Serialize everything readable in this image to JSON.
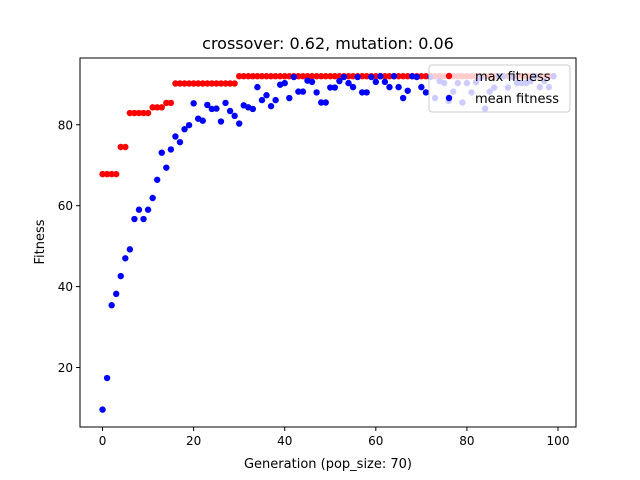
{
  "chart_data": {
    "type": "scatter",
    "title": "crossover: 0.62, mutation: 0.06",
    "xlabel": "Generation (pop_size: 70)",
    "ylabel": "Fitness",
    "xlim": [
      -4.95,
      103.95
    ],
    "ylim": [
      5.3,
      96.5
    ],
    "xticks": [
      0,
      20,
      40,
      60,
      80,
      100
    ],
    "yticks": [
      20,
      40,
      60,
      80
    ],
    "grid": false,
    "legend_position": "top-right",
    "series": [
      {
        "name": "max fitness",
        "color": "#ff0000",
        "x": [
          0,
          1,
          2,
          3,
          4,
          5,
          6,
          7,
          8,
          9,
          10,
          11,
          12,
          13,
          14,
          15,
          16,
          17,
          18,
          19,
          20,
          21,
          22,
          23,
          24,
          25,
          26,
          27,
          28,
          29,
          30,
          31,
          32,
          33,
          34,
          35,
          36,
          37,
          38,
          39,
          40,
          41,
          42,
          43,
          44,
          45,
          46,
          47,
          48,
          49,
          50,
          51,
          52,
          53,
          54,
          55,
          56,
          57,
          58,
          59,
          60,
          61,
          62,
          63,
          64,
          65,
          66,
          67,
          68,
          69,
          70,
          71,
          72,
          73,
          74,
          75,
          76,
          77,
          78,
          79,
          80,
          81,
          82,
          83,
          84,
          85,
          86,
          87,
          88,
          89,
          90,
          91,
          92,
          93,
          94,
          95,
          96,
          97,
          98,
          99
        ],
        "y": [
          67.8,
          67.8,
          67.8,
          67.8,
          74.5,
          74.5,
          82.9,
          82.9,
          82.9,
          82.9,
          82.9,
          84.3,
          84.3,
          84.3,
          85.4,
          85.4,
          90.2,
          90.2,
          90.2,
          90.2,
          90.2,
          90.2,
          90.2,
          90.2,
          90.2,
          90.2,
          90.2,
          90.2,
          90.2,
          90.2,
          92.0,
          92.0,
          92.0,
          92.0,
          92.0,
          92.0,
          92.0,
          92.0,
          92.0,
          92.0,
          92.0,
          92.0,
          92.0,
          92.0,
          92.0,
          92.0,
          92.0,
          92.0,
          92.0,
          92.0,
          92.0,
          92.0,
          92.0,
          92.0,
          92.0,
          92.0,
          92.0,
          92.0,
          92.0,
          92.0,
          92.0,
          92.0,
          92.0,
          92.0,
          92.0,
          92.0,
          92.0,
          92.0,
          92.0,
          92.0,
          92.0,
          92.0,
          92.0,
          92.0,
          92.0,
          92.0,
          92.0,
          92.0,
          92.0,
          92.0,
          92.0,
          92.0,
          92.0,
          92.0,
          92.0,
          92.0,
          92.0,
          92.0,
          92.0,
          92.0,
          92.0,
          92.0,
          92.0,
          92.0,
          92.0,
          92.0,
          92.0,
          92.0,
          92.0,
          92.0
        ]
      },
      {
        "name": "mean fitness",
        "color": "#0000ff",
        "x": [
          0,
          1,
          2,
          3,
          4,
          5,
          6,
          7,
          8,
          9,
          10,
          11,
          12,
          13,
          14,
          15,
          16,
          17,
          18,
          19,
          20,
          21,
          22,
          23,
          24,
          25,
          26,
          27,
          28,
          29,
          30,
          31,
          32,
          33,
          34,
          35,
          36,
          37,
          38,
          39,
          40,
          41,
          42,
          43,
          44,
          45,
          46,
          47,
          48,
          49,
          50,
          51,
          52,
          53,
          54,
          55,
          56,
          57,
          58,
          59,
          60,
          61,
          62,
          63,
          64,
          65,
          66,
          67,
          68,
          69,
          70,
          71,
          72,
          73,
          74,
          75,
          76,
          77,
          78,
          79,
          80,
          81,
          82,
          83,
          84,
          85,
          86,
          87,
          88,
          89,
          90,
          91,
          92,
          93,
          94,
          95,
          96,
          97,
          98,
          99
        ],
        "y": [
          9.6,
          17.4,
          35.4,
          38.2,
          42.6,
          47.0,
          49.2,
          56.7,
          59.0,
          56.7,
          59.0,
          61.9,
          66.4,
          73.1,
          69.4,
          73.9,
          77.1,
          75.7,
          78.9,
          79.9,
          85.3,
          81.5,
          81.0,
          84.9,
          83.9,
          84.0,
          80.8,
          85.4,
          83.4,
          82.2,
          80.3,
          84.8,
          84.3,
          83.9,
          89.3,
          86.1,
          87.3,
          84.6,
          86.1,
          89.9,
          90.3,
          86.6,
          91.8,
          88.2,
          88.2,
          90.9,
          90.6,
          88.0,
          85.5,
          85.5,
          89.2,
          89.2,
          90.8,
          91.8,
          90.3,
          89.3,
          91.8,
          88.0,
          88.0,
          91.8,
          90.6,
          92.0,
          90.6,
          89.3,
          92.0,
          89.3,
          86.6,
          88.4,
          92.0,
          91.8,
          89.3,
          88.0,
          91.8,
          86.6,
          90.8,
          90.3,
          85.9,
          88.2,
          90.3,
          85.5,
          90.3,
          88.0,
          90.5,
          91.6,
          84.0,
          88.2,
          89.2,
          92.0,
          92.0,
          89.2,
          91.8,
          90.3,
          90.3,
          90.3,
          90.8,
          92.0,
          89.3,
          90.8,
          89.3,
          92.0
        ]
      }
    ]
  }
}
